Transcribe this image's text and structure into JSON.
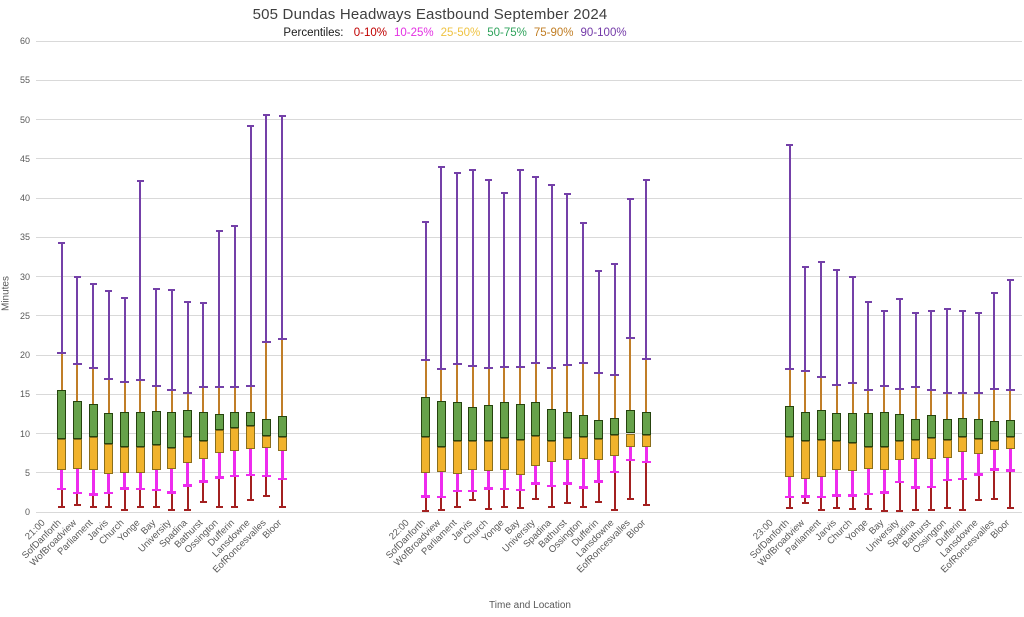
{
  "title": "505 Dundas Headways Eastbound September 2024",
  "legend": {
    "prefix": "Percentiles:",
    "items": [
      {
        "label": "0-10%",
        "color": "#c00000"
      },
      {
        "label": "10-25%",
        "color": "#e331e3"
      },
      {
        "label": "25-50%",
        "color": "#efc343"
      },
      {
        "label": "50-75%",
        "color": "#2fa35c"
      },
      {
        "label": "75-90%",
        "color": "#c17e24"
      },
      {
        "label": "90-100%",
        "color": "#7339a8"
      }
    ]
  },
  "chart_data": {
    "type": "boxplot",
    "title": "505 Dundas Headways Eastbound September 2024",
    "xlabel": "Time and Location",
    "ylabel": "Minutes",
    "ylim": [
      0,
      60
    ],
    "ytick_step": 5,
    "grid": true,
    "percentile_keys": [
      "min",
      "p10",
      "p25",
      "p50",
      "p75",
      "p90",
      "max"
    ],
    "locations": [
      "SofDanforth",
      "WofBroadview",
      "Parliament",
      "Jarvis",
      "Church",
      "Yonge",
      "Bay",
      "University",
      "Spadina",
      "Bathurst",
      "Ossington",
      "Dufferin",
      "Lansdowne",
      "EofRoncesvalles",
      "Bloor"
    ],
    "groups": [
      {
        "time": "21:00",
        "boxes": [
          [
            0.6,
            2.9,
            5.4,
            9.3,
            15.5,
            20.3,
            34.3
          ],
          [
            0.9,
            2.4,
            5.5,
            9.3,
            14.1,
            18.9,
            29.9
          ],
          [
            0.7,
            2.2,
            5.3,
            9.5,
            13.8,
            18.3,
            29.1
          ],
          [
            0.6,
            2.4,
            4.8,
            8.7,
            12.6,
            16.9,
            28.2
          ],
          [
            0.3,
            3.0,
            5.0,
            8.3,
            12.8,
            16.6,
            27.2
          ],
          [
            0.6,
            2.9,
            5.0,
            8.3,
            12.7,
            16.8,
            42.2
          ],
          [
            0.6,
            2.8,
            5.3,
            8.5,
            12.9,
            16.1,
            28.4
          ],
          [
            0.2,
            2.5,
            5.5,
            8.2,
            12.8,
            15.6,
            28.3
          ],
          [
            0.3,
            3.4,
            6.2,
            9.5,
            13.0,
            15.1,
            26.8
          ],
          [
            1.3,
            3.9,
            6.8,
            9.1,
            12.8,
            15.9,
            26.6
          ],
          [
            0.7,
            4.4,
            7.5,
            10.5,
            12.5,
            15.9,
            35.8
          ],
          [
            0.6,
            4.6,
            7.8,
            10.7,
            12.8,
            15.9,
            36.4
          ],
          [
            1.5,
            4.7,
            8.0,
            10.9,
            12.7,
            16.1,
            49.2
          ],
          [
            2.0,
            4.6,
            8.1,
            9.7,
            11.9,
            21.7,
            50.6
          ],
          [
            0.6,
            4.2,
            7.8,
            9.6,
            12.2,
            22.0,
            50.4
          ]
        ]
      },
      {
        "time": "22:00",
        "boxes": [
          [
            0.1,
            2.0,
            5.0,
            9.5,
            14.7,
            19.4,
            37.0
          ],
          [
            0.2,
            1.9,
            5.1,
            8.3,
            14.1,
            18.2,
            43.9
          ],
          [
            0.6,
            2.7,
            4.9,
            9.1,
            14.0,
            18.9,
            43.2
          ],
          [
            1.5,
            2.7,
            5.4,
            9.0,
            13.4,
            18.6,
            43.6
          ],
          [
            0.4,
            3.0,
            5.2,
            9.1,
            13.6,
            18.4,
            42.3
          ],
          [
            0.6,
            2.9,
            5.4,
            9.4,
            14.0,
            18.5,
            40.7
          ],
          [
            0.5,
            2.8,
            4.7,
            9.2,
            13.8,
            18.5,
            43.6
          ],
          [
            1.6,
            3.6,
            5.8,
            9.7,
            14.0,
            19.0,
            42.7
          ],
          [
            0.6,
            3.3,
            6.4,
            9.1,
            13.1,
            18.3,
            41.7
          ],
          [
            1.1,
            3.6,
            6.6,
            9.4,
            12.8,
            18.7,
            40.5
          ],
          [
            0.7,
            3.1,
            6.8,
            9.5,
            12.3,
            19.0,
            36.8
          ],
          [
            1.3,
            3.9,
            6.6,
            9.3,
            11.7,
            17.7,
            30.7
          ],
          [
            0.3,
            5.1,
            7.1,
            9.8,
            12.0,
            17.5,
            31.6
          ],
          [
            1.7,
            6.6,
            8.3,
            10.0,
            13.0,
            22.2,
            39.9
          ],
          [
            0.9,
            6.4,
            8.3,
            9.8,
            12.8,
            19.5,
            42.3
          ]
        ]
      },
      {
        "time": "23:00",
        "boxes": [
          [
            0.5,
            1.9,
            4.5,
            9.5,
            13.5,
            18.2,
            46.8
          ],
          [
            1.1,
            2.0,
            4.2,
            9.1,
            12.8,
            17.9,
            31.2
          ],
          [
            0.2,
            1.9,
            4.4,
            9.2,
            13.0,
            17.2,
            31.8
          ],
          [
            0.5,
            2.1,
            5.4,
            9.0,
            12.6,
            16.2,
            30.8
          ],
          [
            0.4,
            2.1,
            5.2,
            8.8,
            12.6,
            16.4,
            29.9
          ],
          [
            0.4,
            2.3,
            5.5,
            8.3,
            12.6,
            15.6,
            26.8
          ],
          [
            0.1,
            2.5,
            5.4,
            8.3,
            12.8,
            16.0,
            25.6
          ],
          [
            0.1,
            3.8,
            6.6,
            9.1,
            12.5,
            15.7,
            27.1
          ],
          [
            0.2,
            3.1,
            6.7,
            9.2,
            11.8,
            15.9,
            25.3
          ],
          [
            0.3,
            3.2,
            6.7,
            9.4,
            12.3,
            15.5,
            25.6
          ],
          [
            0.5,
            4.1,
            6.9,
            9.2,
            11.8,
            15.1,
            25.9
          ],
          [
            0.3,
            4.2,
            7.6,
            9.5,
            12.0,
            15.1,
            25.6
          ],
          [
            1.5,
            4.8,
            7.4,
            9.3,
            11.8,
            15.1,
            25.4
          ],
          [
            1.7,
            5.4,
            7.9,
            9.1,
            11.6,
            15.7,
            27.9
          ],
          [
            0.5,
            5.3,
            8.0,
            9.5,
            11.7,
            15.5,
            29.6
          ]
        ]
      }
    ],
    "colors": {
      "p0_10": "#a32020",
      "p10_25": "#ee2bee",
      "p25_50_fill": "#f1b32c",
      "p25_50_border": "#8a6e1c",
      "p50_75_fill": "#66a24a",
      "p50_75_border": "#25430e",
      "p75_90": "#c07e28",
      "p90_100": "#7440a8",
      "grid": "#d9d9d9",
      "axis_text": "#595959",
      "title_text": "#3f3f3f"
    }
  }
}
